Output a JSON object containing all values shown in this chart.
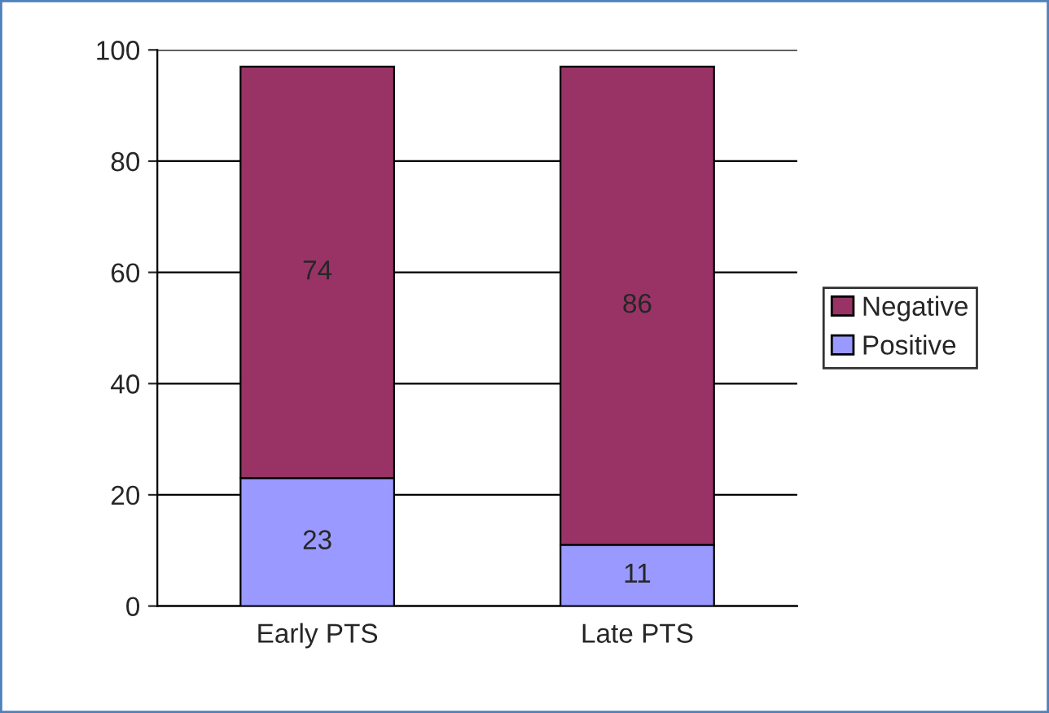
{
  "chart_data": {
    "type": "bar",
    "stacked": true,
    "categories": [
      "Early PTS",
      "Late PTS"
    ],
    "series": [
      {
        "name": "Positive",
        "color": "#9999ff",
        "values": [
          23,
          11
        ]
      },
      {
        "name": "Negative",
        "color": "#993366",
        "values": [
          74,
          86
        ]
      }
    ],
    "ylim": [
      0,
      100
    ],
    "yticks": [
      0,
      20,
      40,
      60,
      80,
      100
    ],
    "grid": "y",
    "legend": "right",
    "data_labels": true
  }
}
